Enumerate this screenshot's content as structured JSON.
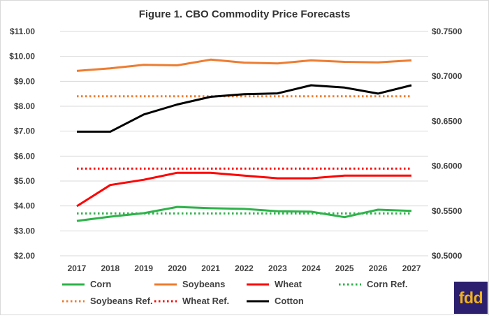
{
  "chart_data": {
    "type": "line",
    "title": "Figure 1.  CBO Commodity Price Forecasts",
    "categories": [
      "2017",
      "2018",
      "2019",
      "2020",
      "2021",
      "2022",
      "2023",
      "2024",
      "2025",
      "2026",
      "2027"
    ],
    "y_left": {
      "min": 2.0,
      "max": 11.0,
      "step": 1.0,
      "tick_labels": [
        "$2.00",
        "$3.00",
        "$4.00",
        "$5.00",
        "$6.00",
        "$7.00",
        "$8.00",
        "$9.00",
        "$10.00",
        "$11.00"
      ]
    },
    "y_right": {
      "min": 0.5,
      "max": 0.75,
      "step": 0.05,
      "tick_labels": [
        "$0.5000",
        "$0.5500",
        "$0.6000",
        "$0.6500",
        "$0.7000",
        "$0.7500"
      ]
    },
    "grid": true,
    "legend_position": "bottom",
    "series": [
      {
        "name": "Corn",
        "axis": "left",
        "style": "solid",
        "color": "#2eb24a",
        "values": [
          3.4,
          3.57,
          3.71,
          3.96,
          3.91,
          3.88,
          3.79,
          3.77,
          3.55,
          3.85,
          3.8
        ]
      },
      {
        "name": "Soybeans",
        "axis": "left",
        "style": "solid",
        "color": "#ed7d31",
        "values": [
          9.42,
          9.52,
          9.66,
          9.64,
          9.87,
          9.75,
          9.72,
          9.84,
          9.78,
          9.76,
          9.84
        ]
      },
      {
        "name": "Wheat",
        "axis": "left",
        "style": "solid",
        "color": "#ff0000",
        "values": [
          3.99,
          4.84,
          5.05,
          5.33,
          5.33,
          5.22,
          5.11,
          5.11,
          5.22,
          5.22,
          5.22
        ]
      },
      {
        "name": "Corn Ref.",
        "axis": "left",
        "style": "dotted",
        "color": "#2eb24a",
        "values": [
          3.7,
          3.7,
          3.7,
          3.7,
          3.7,
          3.7,
          3.7,
          3.7,
          3.7,
          3.7,
          3.7
        ]
      },
      {
        "name": "Soybeans Ref.",
        "axis": "left",
        "style": "dotted",
        "color": "#ed7d31",
        "values": [
          8.4,
          8.4,
          8.4,
          8.4,
          8.4,
          8.4,
          8.4,
          8.4,
          8.4,
          8.4,
          8.4
        ]
      },
      {
        "name": "Wheat Ref.",
        "axis": "left",
        "style": "dotted",
        "color": "#ff0000",
        "values": [
          5.5,
          5.5,
          5.5,
          5.5,
          5.5,
          5.5,
          5.5,
          5.5,
          5.5,
          5.5,
          5.5
        ]
      },
      {
        "name": "Cotton",
        "axis": "right",
        "style": "solid",
        "color": "#000000",
        "values": [
          0.6383,
          0.6383,
          0.6575,
          0.6686,
          0.6772,
          0.6801,
          0.681,
          0.69,
          0.6875,
          0.6808,
          0.69
        ]
      }
    ]
  },
  "logo": {
    "text": "fdd",
    "background": "#2b1f6e",
    "color": "#f2b21a"
  }
}
